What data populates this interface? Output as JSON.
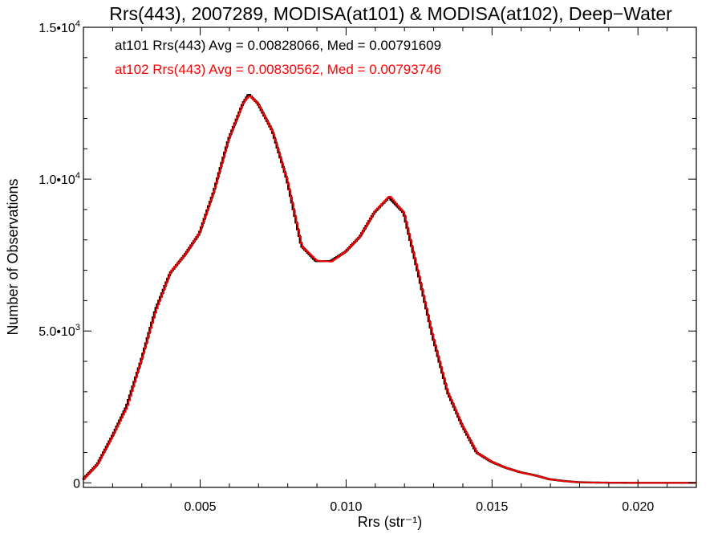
{
  "chart_data": {
    "type": "line",
    "title": "Rrs(443), 2007289, MODISA(at101) & MODISA(at102), Deep−Water",
    "xlabel": "Rrs (str⁻¹)",
    "ylabel": "Number of Observations",
    "xlim": [
      0.001,
      0.022
    ],
    "ylim": [
      -150,
      15000
    ],
    "x_ticks": [
      0.005,
      0.01,
      0.015,
      0.02
    ],
    "x_tick_labels": [
      "0.005",
      "0.010",
      "0.015",
      "0.020"
    ],
    "y_ticks": [
      0,
      5000,
      10000,
      15000
    ],
    "y_tick_labels": [
      {
        "mantissa": "0",
        "exponent": ""
      },
      {
        "mantissa": "5.0•10",
        "exponent": "3"
      },
      {
        "mantissa": "1.0•10",
        "exponent": "4"
      },
      {
        "mantissa": "1.5•10",
        "exponent": "4"
      }
    ],
    "grid": false,
    "legend": "top-left",
    "annotations": [
      {
        "text": "at101 Rrs(443) Avg = 0.00828066, Med = 0.00791609",
        "color": "#000000"
      },
      {
        "text": "at102 Rrs(443) Avg = 0.00830562, Med = 0.00793746",
        "color": "#ff0000"
      }
    ],
    "x": [
      0.001,
      0.0015,
      0.002,
      0.0025,
      0.003,
      0.0035,
      0.004,
      0.0045,
      0.005,
      0.0055,
      0.006,
      0.0065,
      0.0067,
      0.007,
      0.0075,
      0.008,
      0.0085,
      0.009,
      0.0095,
      0.01,
      0.0105,
      0.011,
      0.0115,
      0.012,
      0.0125,
      0.013,
      0.0135,
      0.014,
      0.0145,
      0.015,
      0.0155,
      0.016,
      0.0165,
      0.017,
      0.0175,
      0.018,
      0.0185,
      0.019,
      0.02,
      0.021,
      0.022
    ],
    "series": [
      {
        "name": "at101",
        "color": "#000000",
        "values": [
          100,
          600,
          1500,
          2500,
          4000,
          5700,
          6900,
          7500,
          8200,
          9600,
          11300,
          12500,
          12800,
          12500,
          11600,
          10000,
          7800,
          7300,
          7300,
          7600,
          8100,
          8900,
          9400,
          8900,
          6900,
          4800,
          3000,
          1900,
          1000,
          700,
          500,
          350,
          250,
          120,
          60,
          20,
          10,
          5,
          0,
          0,
          0
        ]
      },
      {
        "name": "at102",
        "color": "#ff0000",
        "values": [
          100,
          620,
          1520,
          2480,
          4050,
          5680,
          6950,
          7520,
          8250,
          9650,
          11350,
          12550,
          12750,
          12480,
          11550,
          9950,
          7780,
          7320,
          7280,
          7620,
          8130,
          8950,
          9450,
          8880,
          6870,
          4780,
          2980,
          1880,
          990,
          690,
          490,
          340,
          240,
          115,
          55,
          20,
          10,
          5,
          0,
          0,
          0
        ]
      }
    ]
  }
}
